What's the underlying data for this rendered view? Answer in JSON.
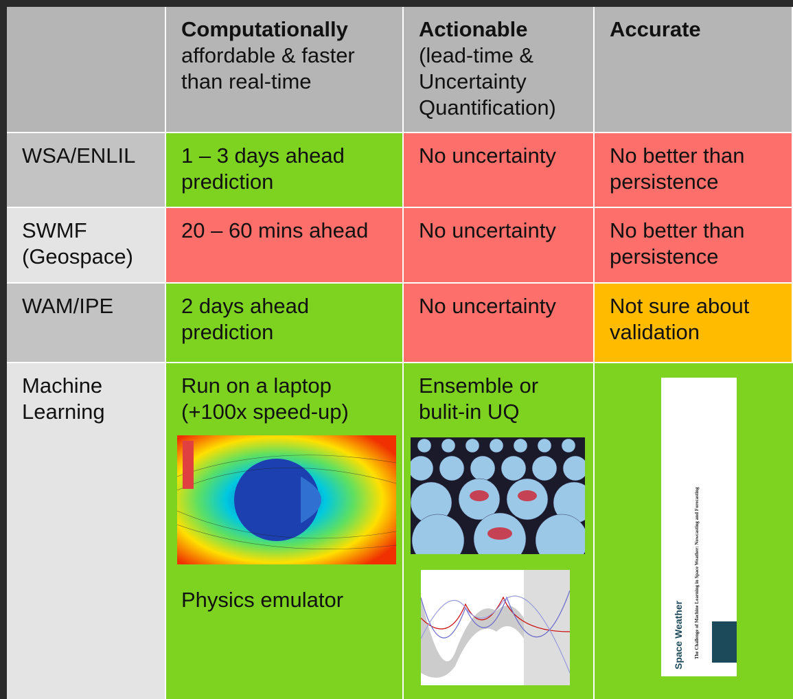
{
  "table": {
    "columns": [
      {
        "title": "Computationally",
        "subtitle": "affordable & faster than real-time"
      },
      {
        "title": "Actionable",
        "subtitle": "(lead-time & Uncertainty Quantification)"
      },
      {
        "title": "Accurate"
      }
    ],
    "rows": [
      {
        "label": "WSA/ENLIL",
        "cells": [
          "1 – 3 days ahead prediction",
          "No uncertainty",
          "No better than persistence"
        ]
      },
      {
        "label": "SWMF (Geospace)",
        "cells": [
          "20 – 60 mins ahead",
          "No uncertainty",
          "No better than persistence"
        ]
      },
      {
        "label": "WAM/IPE",
        "cells": [
          "2 days ahead prediction",
          "No uncertainty",
          "Not sure about validation"
        ]
      },
      {
        "label": "Machine Learning",
        "cells": [
          "Run on a laptop (+100x speed-up)",
          "Ensemble or bulit-in UQ"
        ],
        "caption": "Physics emulator"
      }
    ]
  },
  "paper": {
    "journal": "Space Weather",
    "title": "The Challenge of Machine Learning in Space Weather: Nowcasting and Forecasting"
  }
}
